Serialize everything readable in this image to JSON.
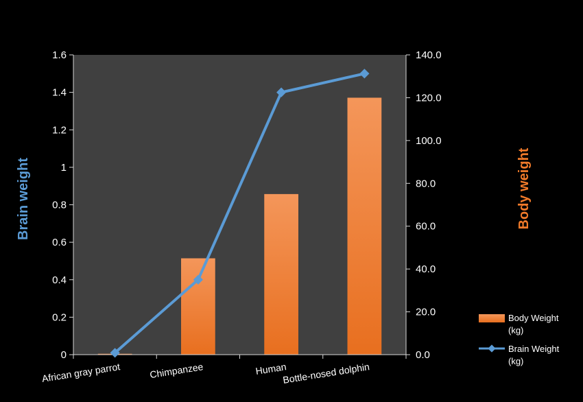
{
  "chart_data": {
    "type": "bar",
    "categories": [
      "African gray parrot",
      "Chimpanzee",
      "Human",
      "Bottle-nosed dolphin"
    ],
    "series": [
      {
        "name": "Body Weight (kg)",
        "type": "bar",
        "axis": "right",
        "values": [
          0.4,
          45,
          75,
          120
        ],
        "color": "#f07a2a"
      },
      {
        "name": "Brain Weight (kg)",
        "type": "line",
        "axis": "left",
        "values": [
          0.01,
          0.4,
          1.4,
          1.5
        ],
        "color": "#5b9bd5"
      }
    ],
    "ylabel": "Brain weight",
    "ylabel_right": "Body weight",
    "ylim": [
      0,
      1.6
    ],
    "ylim_right": [
      0,
      140
    ],
    "yticks": [
      "0",
      "0.2",
      "0.4",
      "0.6",
      "0.8",
      "1",
      "1.2",
      "1.4",
      "1.6"
    ],
    "yticks_right": [
      "0.0",
      "20.0",
      "40.0",
      "60.0",
      "80.0",
      "100.0",
      "120.0",
      "140.0"
    ],
    "ylabel_color": "#5b9bd5",
    "ylabel_right_color": "#f07a2a",
    "plot_background": "#404040",
    "page_background": "#000000",
    "legend_position": "bottom-right",
    "legend": [
      {
        "line1": "Body Weight",
        "line2": "(kg)",
        "series": 0
      },
      {
        "line1": "Brain Weight",
        "line2": "(kg)",
        "series": 1
      }
    ]
  }
}
